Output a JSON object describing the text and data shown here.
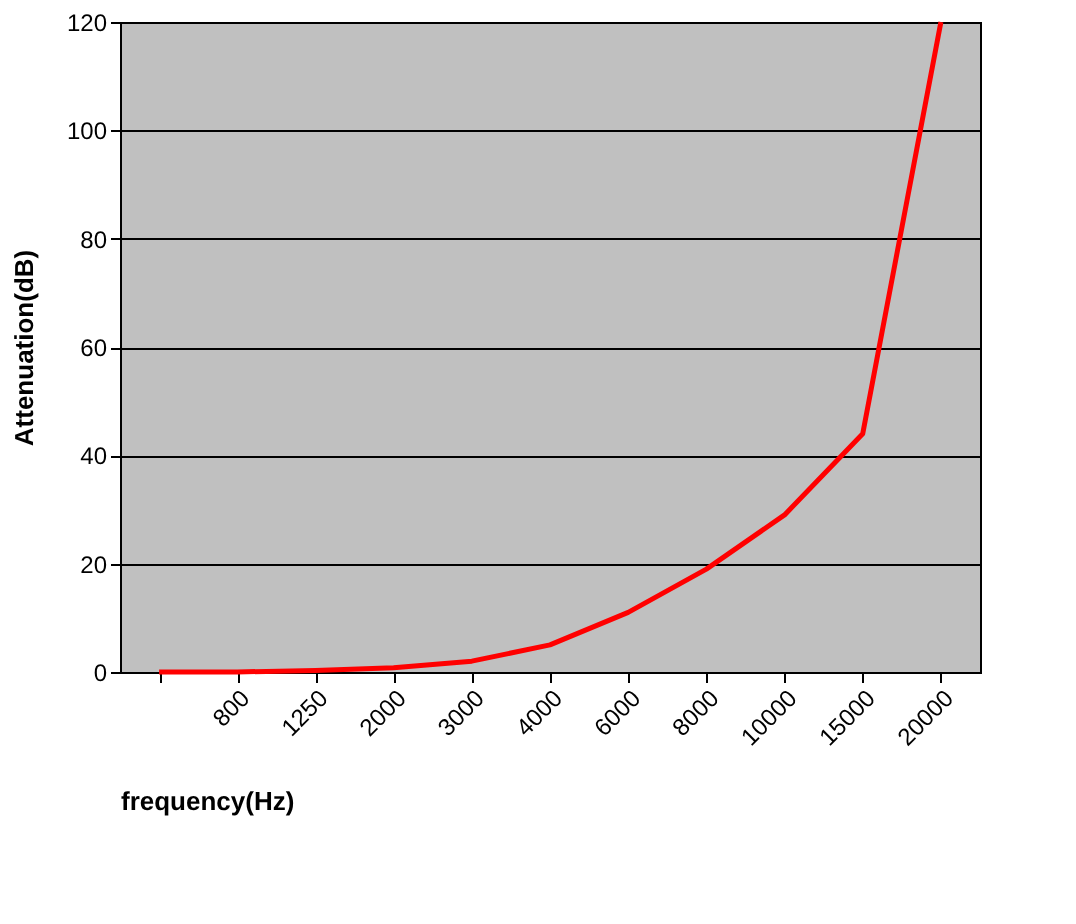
{
  "chart_data": {
    "type": "line",
    "xlabel": "frequency(Hz)",
    "ylabel": "Attenuation(dB)",
    "categories": [
      null,
      "800",
      "1250",
      "2000",
      "3000",
      "4000",
      "6000",
      "8000",
      "10000",
      "15000",
      "20000"
    ],
    "series": [
      {
        "color": "#ff0000",
        "values": [
          0,
          0,
          0.3,
          0.8,
          2,
          5,
          11,
          19,
          29,
          44,
          120
        ]
      }
    ],
    "ylim": [
      0,
      120
    ],
    "yticks": [
      0,
      20,
      40,
      60,
      80,
      100,
      120
    ],
    "grid": "y",
    "marker": "none",
    "line_style": "solid"
  }
}
